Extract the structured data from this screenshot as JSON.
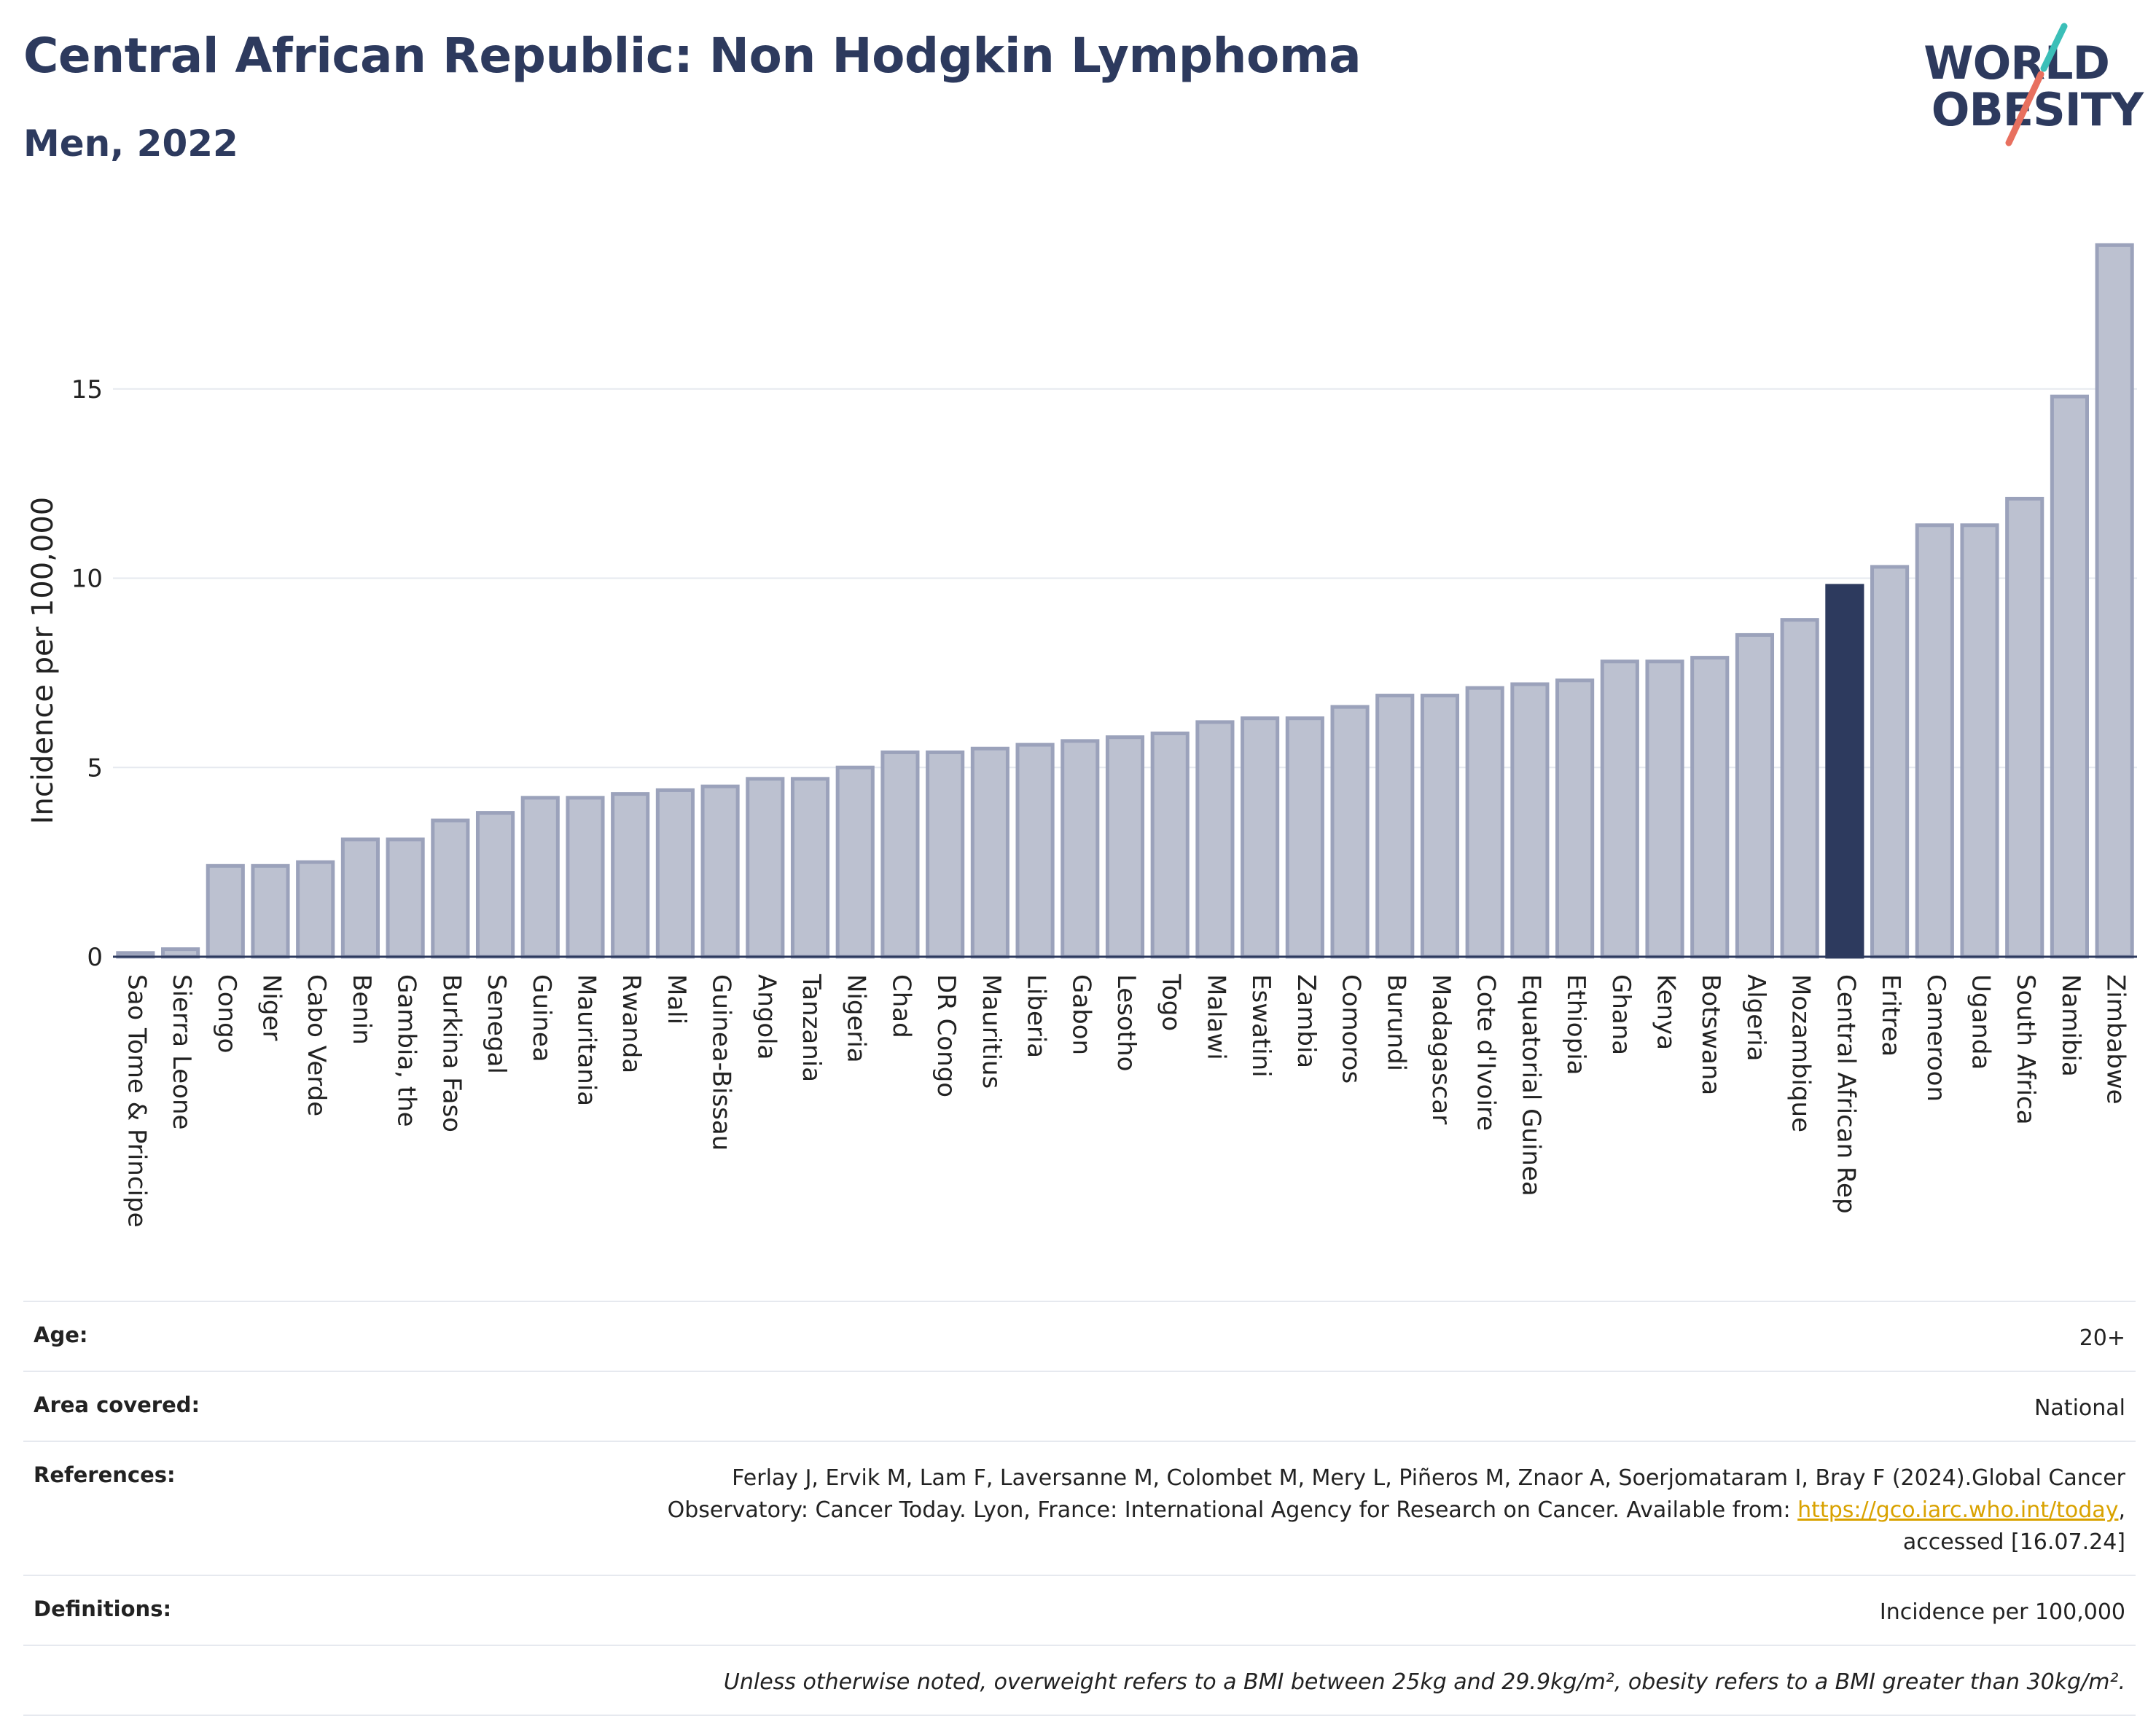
{
  "header": {
    "title": "Central African Republic: Non Hodgkin Lymphoma",
    "subtitle": "Men, 2022"
  },
  "logo": {
    "line1": "WORLD",
    "line2": "OBESITY",
    "colors": {
      "teal": "#3bbfb8",
      "coral": "#e8705f"
    }
  },
  "chart_data": {
    "type": "bar",
    "ylabel": "Incidence per 100,000",
    "xlabel": "",
    "ylim": [
      0,
      19.5
    ],
    "yticks": [
      0,
      5,
      10,
      15
    ],
    "grid": true,
    "highlight": "Central African Rep",
    "colors": {
      "bar": "#bcc1d0",
      "bar_edge": "#9ba2bb",
      "highlight": "#2d3a5e",
      "grid": "#e6e9ef"
    },
    "categories": [
      "Sao Tome & Principe",
      "Sierra Leone",
      "Congo",
      "Niger",
      "Cabo Verde",
      "Benin",
      "Gambia, the",
      "Burkina Faso",
      "Senegal",
      "Guinea",
      "Mauritania",
      "Rwanda",
      "Mali",
      "Guinea-Bissau",
      "Angola",
      "Tanzania",
      "Nigeria",
      "Chad",
      "DR Congo",
      "Mauritius",
      "Liberia",
      "Gabon",
      "Lesotho",
      "Togo",
      "Malawi",
      "Eswatini",
      "Zambia",
      "Comoros",
      "Burundi",
      "Madagascar",
      "Cote d'Ivoire",
      "Equatorial Guinea",
      "Ethiopia",
      "Ghana",
      "Kenya",
      "Botswana",
      "Algeria",
      "Mozambique",
      "Central African Rep",
      "Eritrea",
      "Cameroon",
      "Uganda",
      "South Africa",
      "Namibia",
      "Zimbabwe"
    ],
    "values": [
      0.1,
      0.2,
      2.4,
      2.4,
      2.5,
      3.1,
      3.1,
      3.6,
      3.8,
      4.2,
      4.2,
      4.3,
      4.4,
      4.5,
      4.7,
      4.7,
      5.0,
      5.4,
      5.4,
      5.5,
      5.6,
      5.7,
      5.8,
      5.9,
      6.2,
      6.3,
      6.3,
      6.6,
      6.9,
      6.9,
      7.1,
      7.2,
      7.3,
      7.8,
      7.8,
      7.9,
      8.5,
      8.9,
      9.8,
      10.3,
      11.4,
      11.4,
      12.1,
      14.8,
      18.8
    ]
  },
  "meta": {
    "age_label": "Age:",
    "age_value": "20+",
    "area_label": "Area covered:",
    "area_value": "National",
    "references_label": "References:",
    "references_line1": "Ferlay J, Ervik M, Lam F, Laversanne M, Colombet M, Mery L, Piñeros M, Znaor A, Soerjomataram I, Bray F (2024).Global Cancer",
    "references_line2_pre": "Observatory: Cancer Today. Lyon, France: International Agency for Research on Cancer. Available from: ",
    "references_link": "https://gco.iarc.who.int/today",
    "references_line2_post": ",",
    "references_line3": "accessed [16.07.24]",
    "definitions_label": "Definitions:",
    "definitions_value": "Incidence per 100,000",
    "note": "Unless otherwise noted, overweight refers to a BMI between 25kg and 29.9kg/m², obesity refers to a BMI greater than 30kg/m²."
  }
}
